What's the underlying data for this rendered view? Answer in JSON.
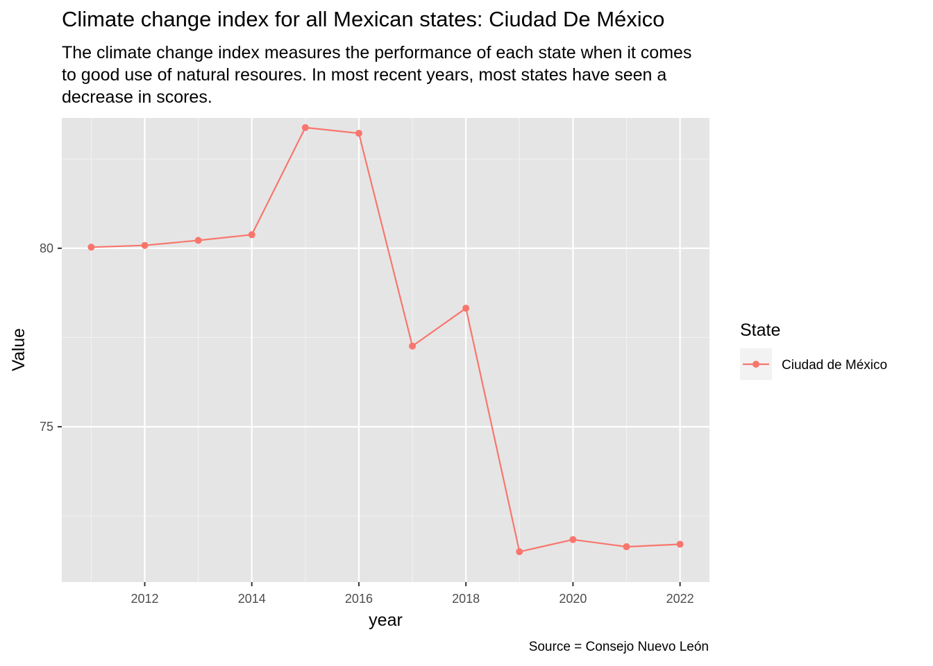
{
  "title": "Climate change index for all Mexican states: Ciudad De México",
  "subtitle_lines": [
    "The climate change index measures the performance of each state when it comes",
    "to good use of natural resoures. In most recent years, most states have seen a",
    "decrease in scores."
  ],
  "caption": "Source = Consejo Nuevo León",
  "chart_data": {
    "type": "line",
    "xlabel": "year",
    "ylabel": "Value",
    "xlim": [
      2010.45,
      2022.55
    ],
    "ylim": [
      70.65,
      83.65
    ],
    "x_ticks": [
      2012,
      2014,
      2016,
      2018,
      2020,
      2022
    ],
    "y_ticks": [
      75,
      80
    ],
    "grid": true,
    "legend": {
      "title": "State",
      "position": "right"
    },
    "series": [
      {
        "name": "Ciudad de México",
        "color": "#F8766D",
        "x": [
          2011,
          2012,
          2013,
          2014,
          2015,
          2016,
          2017,
          2018,
          2019,
          2020,
          2021,
          2022
        ],
        "y": [
          80.03,
          80.08,
          80.22,
          80.38,
          83.38,
          83.22,
          77.26,
          78.32,
          71.5,
          71.84,
          71.64,
          71.71
        ]
      }
    ]
  }
}
